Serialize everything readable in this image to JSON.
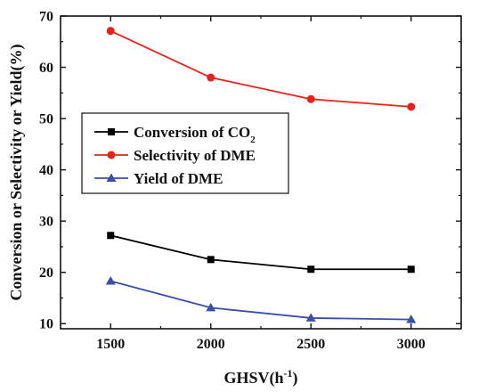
{
  "chart_data": {
    "type": "line",
    "x": [
      1500,
      2000,
      2500,
      3000
    ],
    "xlim": [
      1250,
      3250
    ],
    "ylim": [
      9,
      70
    ],
    "xticks": [
      1500,
      2000,
      2500,
      3000
    ],
    "yticks": [
      10,
      20,
      30,
      40,
      50,
      60,
      70
    ],
    "xlabel": {
      "main": "GHSV(h",
      "sup": "-1",
      "tail": ")"
    },
    "ylabel": "Conversion or Selectivity or Yield(%)",
    "legend_position": "middle-left",
    "grid": false,
    "series": [
      {
        "name": "Conversion of CO",
        "name_sub": "2",
        "color": "#000000",
        "marker": "square",
        "values": [
          27.2,
          22.5,
          20.6,
          20.6
        ]
      },
      {
        "name": "Selectivity of DME",
        "name_sub": "",
        "color": "#e8221b",
        "marker": "circle",
        "values": [
          67.1,
          58.0,
          53.8,
          52.3
        ]
      },
      {
        "name": "Yield of DME",
        "name_sub": "",
        "color": "#3a4fa8",
        "marker": "triangle",
        "values": [
          18.3,
          13.1,
          11.1,
          10.8
        ]
      }
    ]
  }
}
